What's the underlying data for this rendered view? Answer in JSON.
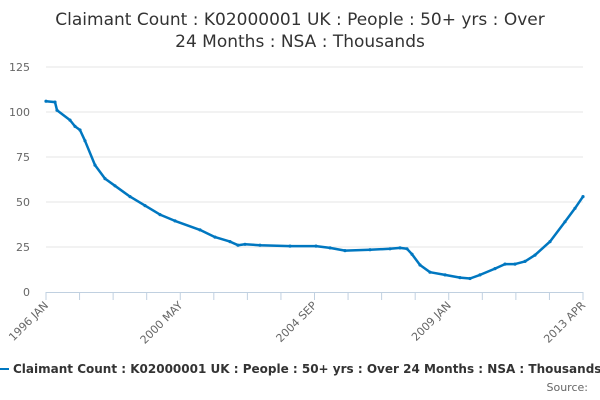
{
  "chart_data": {
    "type": "line",
    "title": "Claimant Count : K02000001 UK : People : 50+ yrs : Over 24 Months : NSA : Thousands",
    "title_lines": [
      "Claimant Count : K02000001 UK : People : 50+ yrs : Over",
      "24 Months : NSA : Thousands"
    ],
    "xlabel": "",
    "ylabel": "",
    "ylim": [
      0,
      125
    ],
    "yticks": [
      0,
      25,
      50,
      75,
      100,
      125
    ],
    "xtick_labels": [
      "1996 JAN",
      "2000 MAY",
      "2004 SEP",
      "2009 JAN",
      "2013 APR"
    ],
    "grid": true,
    "legend_position": "bottom",
    "line_color": "#0077c0",
    "series": [
      {
        "name": "Claimant Count : K02000001 UK : People : 50+ yrs : Over 24 Months : NSA : Thousands",
        "x": [
          "1996 JAN",
          "1996 JUN",
          "1996 JUL",
          "1997 JAN",
          "1997 MAR",
          "1997 MAY",
          "1997 AUG",
          "1998 JAN",
          "1998 JUL",
          "1999 JAN",
          "1999 JUL",
          "2000 JAN",
          "2000 MAY",
          "2000 SEP",
          "2001 MAR",
          "2001 SEP",
          "2002 MAR",
          "2002 JUN",
          "2002 SEP",
          "2003 MAR",
          "2004 JAN",
          "2004 SEP",
          "2005 MAR",
          "2006 JAN",
          "2006 SEP",
          "2007 APR",
          "2007 NOV",
          "2008 MAR",
          "2008 MAY",
          "2008 AUG",
          "2008 DEC",
          "2009 JAN",
          "2009 JUL",
          "2009 DEC",
          "2010 APR",
          "2010 SEP",
          "2011 JAN",
          "2011 MAY",
          "2011 SEP",
          "2012 JAN",
          "2012 MAY",
          "2012 SEP",
          "2013 JAN",
          "2013 APR"
        ],
        "values": [
          106,
          105.5,
          101,
          95.5,
          92,
          90,
          84,
          70.5,
          63,
          59,
          53,
          48,
          43,
          39.5,
          34.5,
          30.5,
          28,
          26,
          26.5,
          26,
          25.5,
          25.5,
          24.5,
          23,
          23.5,
          24,
          24.5,
          24,
          21,
          15,
          11,
          9.5,
          8,
          7.5,
          9.5,
          13,
          15.5,
          15.5,
          17,
          20.5,
          28,
          39,
          46.5,
          53
        ]
      }
    ]
  },
  "legend": {
    "label": "Claimant Count : K02000001 UK : People : 50+ yrs : Over 24 Months : NSA : Thousands"
  },
  "footer": {
    "source_label": "Source:"
  }
}
